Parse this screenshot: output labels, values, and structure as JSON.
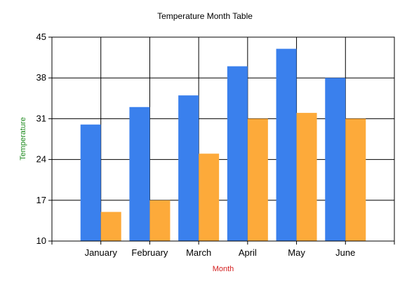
{
  "chart_data": {
    "type": "bar",
    "title": "Temperature Month Table",
    "xlabel": "Month",
    "ylabel": "Temperature",
    "categories": [
      "January",
      "February",
      "March",
      "April",
      "May",
      "June"
    ],
    "series": [
      {
        "values": [
          30,
          33,
          35,
          40,
          43,
          38
        ],
        "color": "#3a80ed"
      },
      {
        "values": [
          15,
          17,
          25,
          31,
          32,
          31
        ],
        "color": "#fdaa3a"
      }
    ],
    "ylim": [
      10,
      45
    ],
    "yticks": [
      10,
      17,
      24,
      31,
      38,
      45
    ],
    "grid": true,
    "legend": "none",
    "colors": {
      "xlabel": "#d42020",
      "ylabel": "#1e8a1e",
      "grid": "#000000",
      "background": "#ffffff"
    }
  }
}
